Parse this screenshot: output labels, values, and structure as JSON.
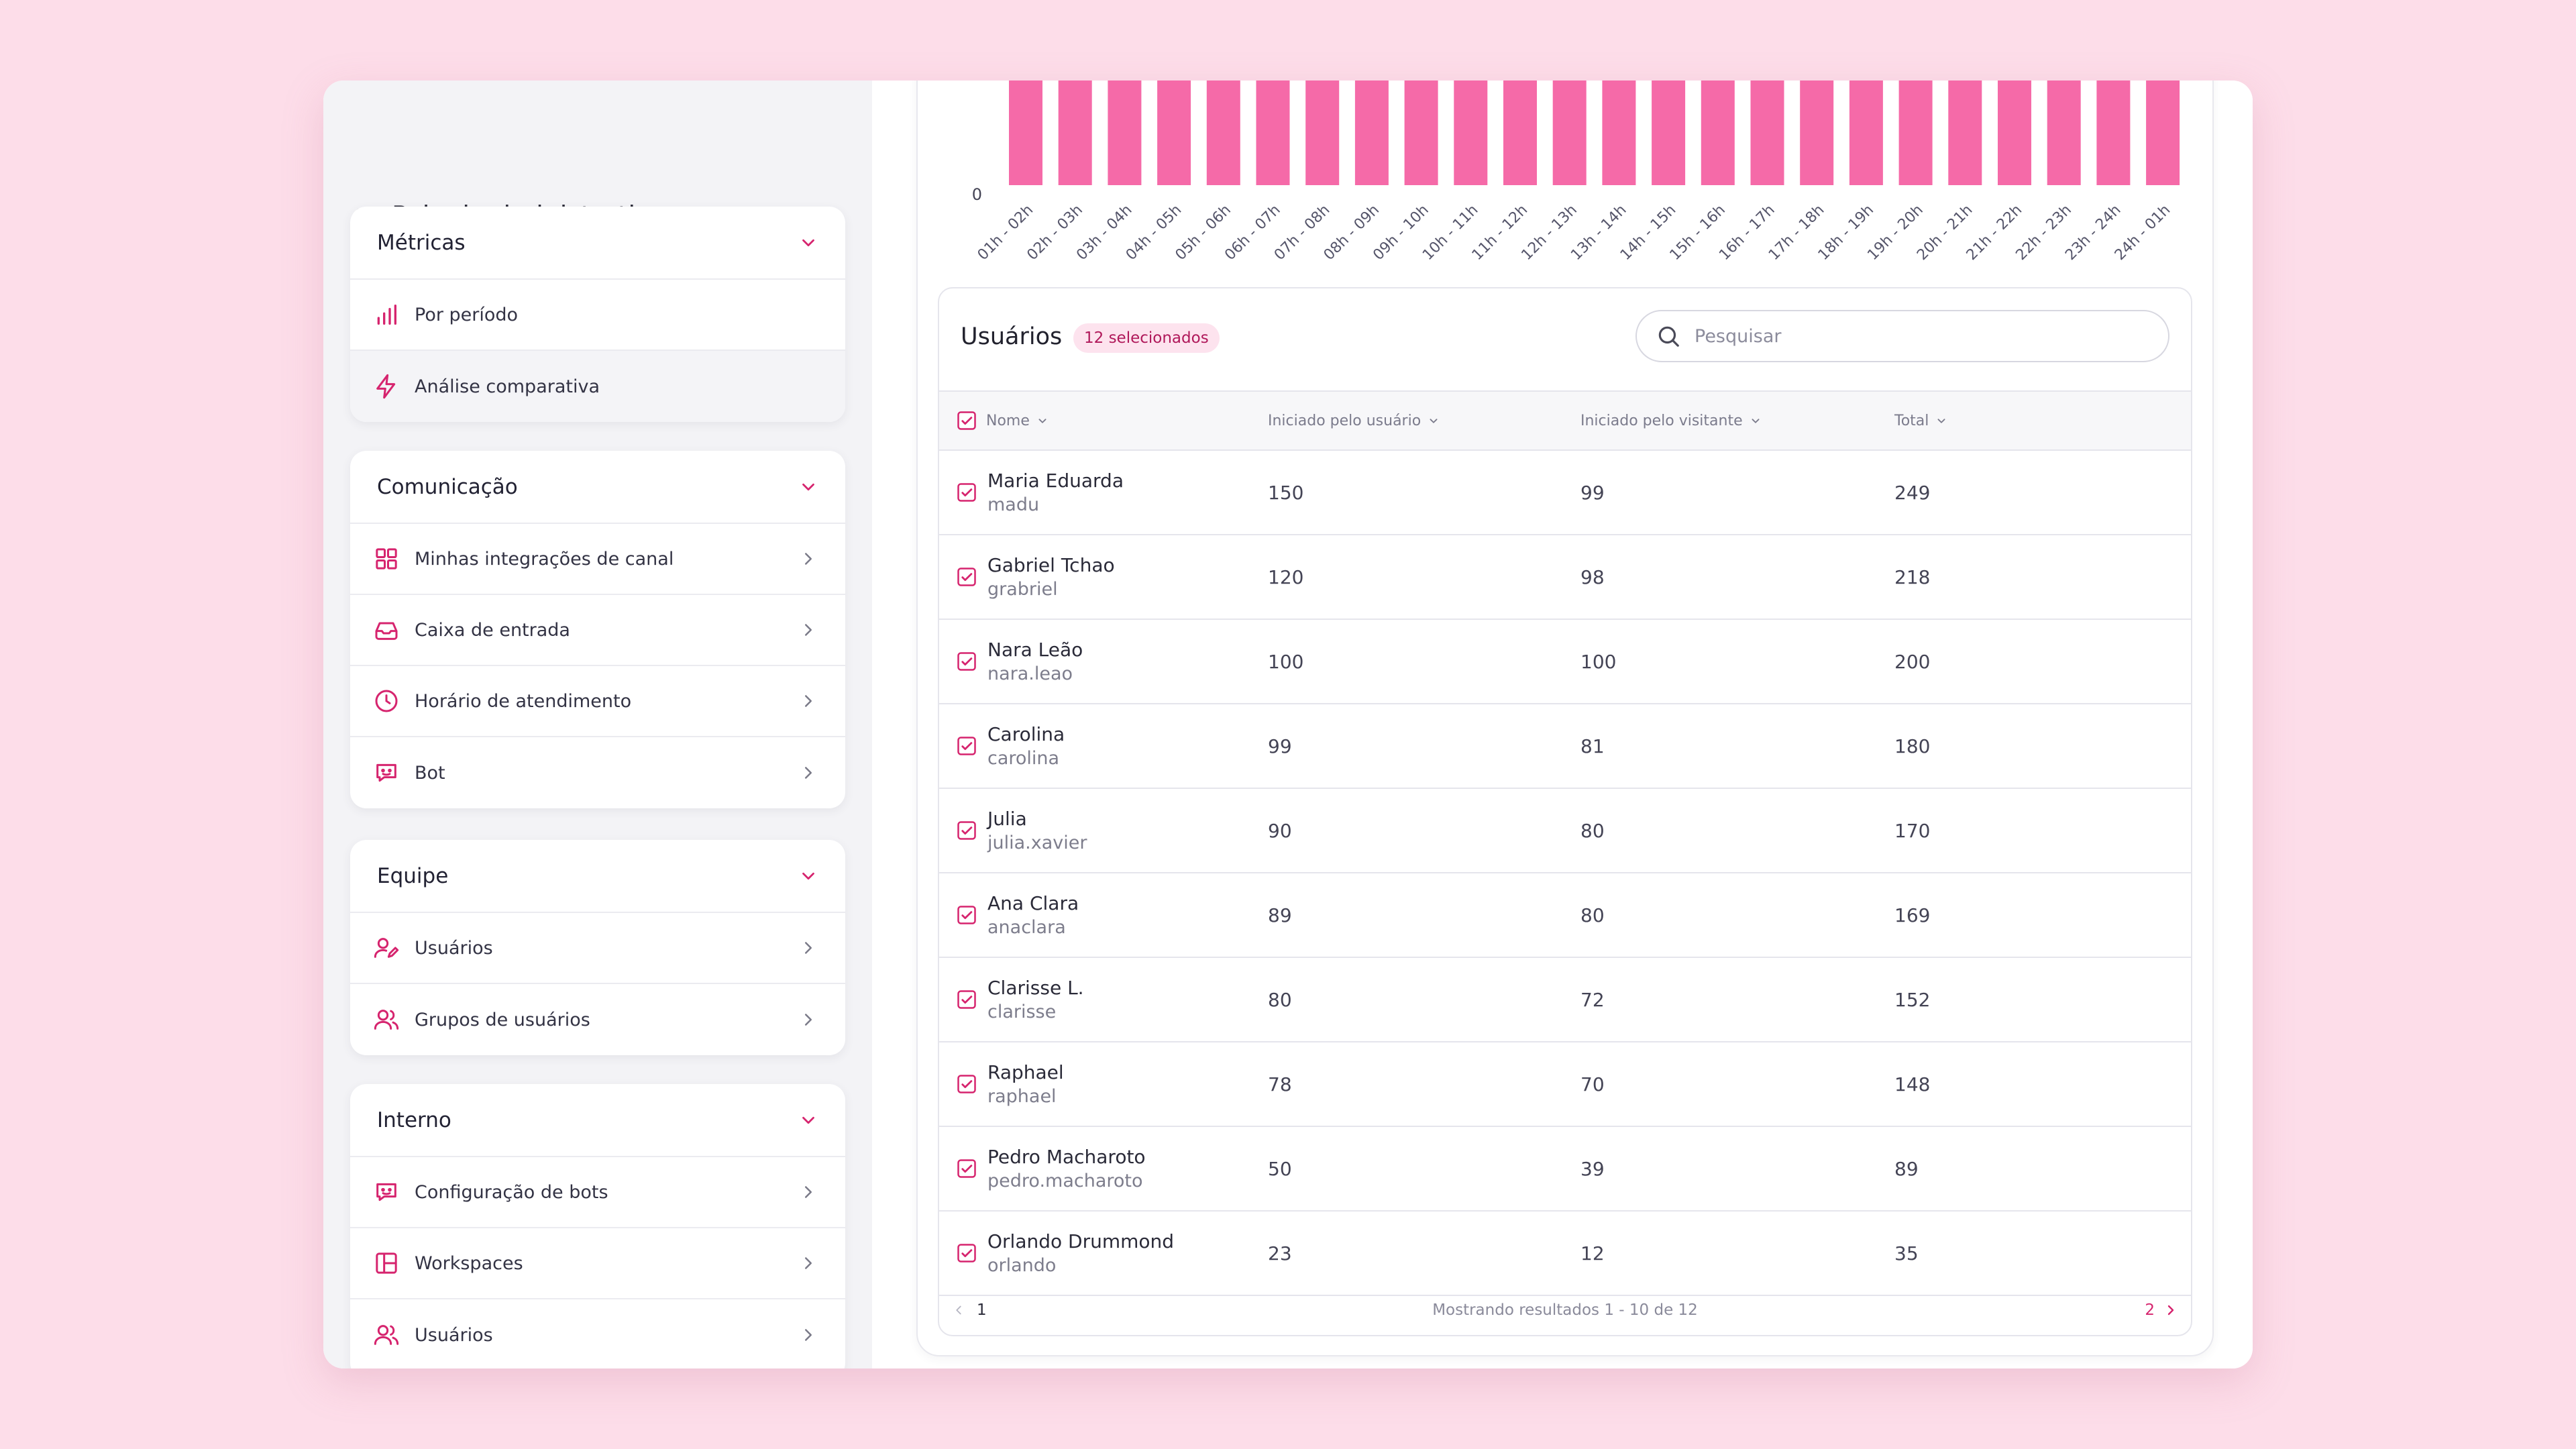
{
  "colors": {
    "accent": "#d6246e",
    "bar": "#f56aa8",
    "background": "#fddde9"
  },
  "sidebar": {
    "title": "Painel administrativo",
    "sections": [
      {
        "title": "Métricas",
        "items": [
          {
            "label": "Por período",
            "icon": "bar-chart-icon"
          },
          {
            "label": "Análise comparativa",
            "icon": "lightning-icon"
          }
        ]
      },
      {
        "title": "Comunicação",
        "items": [
          {
            "label": "Minhas integrações de canal",
            "icon": "grid-icon"
          },
          {
            "label": "Caixa de entrada",
            "icon": "inbox-icon"
          },
          {
            "label": "Horário de atendimento",
            "icon": "clock-icon"
          },
          {
            "label": "Bot",
            "icon": "bot-icon"
          }
        ]
      },
      {
        "title": "Equipe",
        "items": [
          {
            "label": "Usuários",
            "icon": "user-edit-icon"
          },
          {
            "label": "Grupos de usuários",
            "icon": "users-icon"
          }
        ]
      },
      {
        "title": "Interno",
        "items": [
          {
            "label": "Configuração de bots",
            "icon": "bot-icon"
          },
          {
            "label": "Workspaces",
            "icon": "layout-icon"
          },
          {
            "label": "Usuários",
            "icon": "users-icon"
          }
        ]
      }
    ]
  },
  "chart_data": {
    "type": "bar",
    "categories": [
      "01h - 02h",
      "02h - 03h",
      "03h - 04h",
      "04h - 05h",
      "05h - 06h",
      "06h - 07h",
      "07h - 08h",
      "08h - 09h",
      "09h - 10h",
      "10h - 11h",
      "11h - 12h",
      "12h - 13h",
      "13h - 14h",
      "14h - 15h",
      "15h - 16h",
      "16h - 17h",
      "17h - 18h",
      "18h - 19h",
      "19h - 20h",
      "20h - 21h",
      "21h - 22h",
      "22h - 23h",
      "23h - 24h",
      "24h - 01h"
    ],
    "y_tick_visible": "0",
    "title": "",
    "xlabel": "",
    "ylabel": ""
  },
  "users": {
    "title": "Usuários",
    "badge": "12 selecionados",
    "search_placeholder": "Pesquisar",
    "columns": [
      "Nome",
      "Iniciado pelo usuário",
      "Iniciado pelo visitante",
      "Total"
    ],
    "rows": [
      {
        "name": "Maria Eduarda",
        "username": "madu",
        "by_user": "150",
        "by_visitor": "99",
        "total": "249"
      },
      {
        "name": "Gabriel Tchao",
        "username": "grabriel",
        "by_user": "120",
        "by_visitor": "98",
        "total": "218"
      },
      {
        "name": "Nara Leão",
        "username": "nara.leao",
        "by_user": "100",
        "by_visitor": "100",
        "total": "200"
      },
      {
        "name": "Carolina",
        "username": "carolina",
        "by_user": "99",
        "by_visitor": "81",
        "total": "180"
      },
      {
        "name": "Julia",
        "username": "julia.xavier",
        "by_user": "90",
        "by_visitor": "80",
        "total": "170"
      },
      {
        "name": "Ana Clara",
        "username": "anaclara",
        "by_user": "89",
        "by_visitor": "80",
        "total": "169"
      },
      {
        "name": "Clarisse L.",
        "username": "clarisse",
        "by_user": "80",
        "by_visitor": "72",
        "total": "152"
      },
      {
        "name": "Raphael",
        "username": "raphael",
        "by_user": "78",
        "by_visitor": "70",
        "total": "148"
      },
      {
        "name": "Pedro Macharoto",
        "username": "pedro.macharoto",
        "by_user": "50",
        "by_visitor": "39",
        "total": "89"
      },
      {
        "name": "Orlando Drummond",
        "username": "orlando",
        "by_user": "23",
        "by_visitor": "12",
        "total": "35"
      }
    ],
    "pagination": {
      "current": "1",
      "info": "Mostrando resultados 1 - 10 de 12",
      "next": "2"
    }
  }
}
